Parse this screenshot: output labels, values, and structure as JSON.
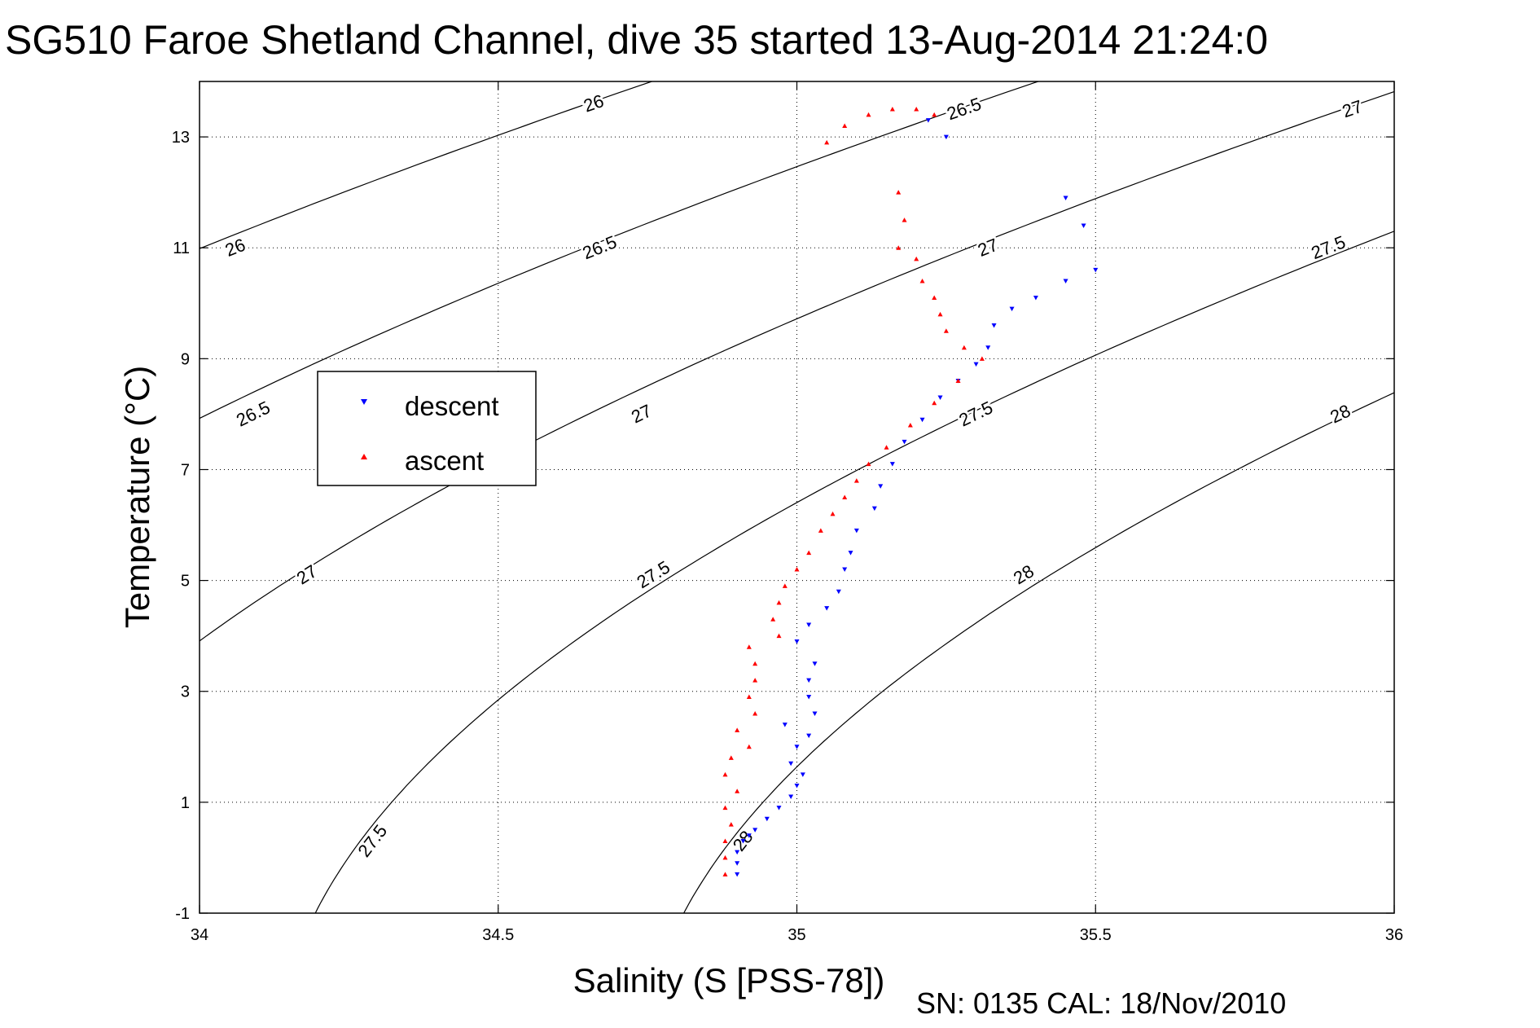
{
  "chart_data": {
    "type": "scatter",
    "title": "SG510 Faroe Shetland Channel, dive 35 started 13-Aug-2014 21:24:0",
    "xlabel": "Salinity (S [PSS-78])",
    "ylabel": "Temperature (°C)",
    "footer": "SN: 0135  CAL: 18/Nov/2010",
    "xlim": [
      34,
      36
    ],
    "ylim": [
      -1,
      14
    ],
    "xticks": [
      34,
      34.5,
      35,
      35.5,
      36
    ],
    "yticks": [
      -1,
      1,
      3,
      5,
      7,
      9,
      11,
      13
    ],
    "grid": true,
    "legend": {
      "position": "left-middle",
      "entries": [
        "descent",
        "ascent"
      ]
    },
    "colors": {
      "descent": "#0000ff",
      "ascent": "#ff0000",
      "contour": "#000000"
    },
    "series": [
      {
        "name": "descent",
        "marker": "triangle-down",
        "points": [
          [
            34.9,
            -0.3
          ],
          [
            34.9,
            -0.1
          ],
          [
            34.9,
            0.1
          ],
          [
            34.91,
            0.3
          ],
          [
            34.92,
            0.4
          ],
          [
            34.93,
            0.5
          ],
          [
            34.95,
            0.7
          ],
          [
            34.97,
            0.9
          ],
          [
            34.99,
            1.1
          ],
          [
            35.0,
            1.3
          ],
          [
            35.01,
            1.5
          ],
          [
            34.99,
            1.7
          ],
          [
            35.0,
            2.0
          ],
          [
            35.02,
            2.2
          ],
          [
            34.98,
            2.4
          ],
          [
            35.03,
            2.6
          ],
          [
            35.02,
            2.9
          ],
          [
            35.02,
            3.2
          ],
          [
            35.03,
            3.5
          ],
          [
            35.0,
            3.9
          ],
          [
            35.02,
            4.2
          ],
          [
            35.05,
            4.5
          ],
          [
            35.07,
            4.8
          ],
          [
            35.08,
            5.2
          ],
          [
            35.09,
            5.5
          ],
          [
            35.1,
            5.9
          ],
          [
            35.13,
            6.3
          ],
          [
            35.14,
            6.7
          ],
          [
            35.16,
            7.1
          ],
          [
            35.18,
            7.5
          ],
          [
            35.21,
            7.9
          ],
          [
            35.24,
            8.3
          ],
          [
            35.27,
            8.6
          ],
          [
            35.3,
            8.9
          ],
          [
            35.32,
            9.2
          ],
          [
            35.33,
            9.6
          ],
          [
            35.36,
            9.9
          ],
          [
            35.4,
            10.1
          ],
          [
            35.45,
            10.4
          ],
          [
            35.5,
            10.6
          ],
          [
            35.48,
            11.4
          ],
          [
            35.45,
            11.9
          ],
          [
            35.22,
            13.3
          ],
          [
            35.25,
            13.0
          ]
        ]
      },
      {
        "name": "ascent",
        "marker": "triangle-up",
        "points": [
          [
            34.88,
            -0.3
          ],
          [
            34.88,
            0.0
          ],
          [
            34.88,
            0.3
          ],
          [
            34.89,
            0.6
          ],
          [
            34.88,
            0.9
          ],
          [
            34.9,
            1.2
          ],
          [
            34.88,
            1.5
          ],
          [
            34.89,
            1.8
          ],
          [
            34.92,
            2.0
          ],
          [
            34.9,
            2.3
          ],
          [
            34.93,
            2.6
          ],
          [
            34.92,
            2.9
          ],
          [
            34.93,
            3.2
          ],
          [
            34.93,
            3.5
          ],
          [
            34.92,
            3.8
          ],
          [
            34.97,
            4.0
          ],
          [
            34.96,
            4.3
          ],
          [
            34.97,
            4.6
          ],
          [
            34.98,
            4.9
          ],
          [
            35.0,
            5.2
          ],
          [
            35.02,
            5.5
          ],
          [
            35.04,
            5.9
          ],
          [
            35.06,
            6.2
          ],
          [
            35.08,
            6.5
          ],
          [
            35.1,
            6.8
          ],
          [
            35.12,
            7.1
          ],
          [
            35.15,
            7.4
          ],
          [
            35.19,
            7.8
          ],
          [
            35.23,
            8.2
          ],
          [
            35.27,
            8.6
          ],
          [
            35.31,
            9.0
          ],
          [
            35.28,
            9.2
          ],
          [
            35.25,
            9.5
          ],
          [
            35.24,
            9.8
          ],
          [
            35.23,
            10.1
          ],
          [
            35.21,
            10.4
          ],
          [
            35.2,
            10.8
          ],
          [
            35.17,
            11.0
          ],
          [
            35.18,
            11.5
          ],
          [
            35.17,
            12.0
          ],
          [
            35.05,
            12.9
          ],
          [
            35.08,
            13.2
          ],
          [
            35.12,
            13.4
          ],
          [
            35.16,
            13.5
          ],
          [
            35.2,
            13.5
          ],
          [
            35.23,
            13.4
          ]
        ]
      }
    ],
    "contours": {
      "levels": [
        26,
        26.5,
        27,
        27.5,
        28
      ],
      "labels": [
        {
          "level": "26",
          "s": 34.66,
          "t": 13.6
        },
        {
          "level": "26.5",
          "s": 35.28,
          "t": 13.5
        },
        {
          "level": "27",
          "s": 35.93,
          "t": 13.5
        },
        {
          "level": "26",
          "s": 34.06,
          "t": 11.0
        },
        {
          "level": "26.5",
          "s": 34.67,
          "t": 11.0
        },
        {
          "level": "27",
          "s": 35.32,
          "t": 11.0
        },
        {
          "level": "27.5",
          "s": 35.89,
          "t": 11.0
        },
        {
          "level": "26.5",
          "s": 34.09,
          "t": 8.0
        },
        {
          "level": "27",
          "s": 34.74,
          "t": 8.0
        },
        {
          "level": "27.5",
          "s": 35.3,
          "t": 8.0
        },
        {
          "level": "28",
          "s": 35.91,
          "t": 8.0
        },
        {
          "level": "27",
          "s": 34.18,
          "t": 5.1
        },
        {
          "level": "27.5",
          "s": 34.76,
          "t": 5.1
        },
        {
          "level": "28",
          "s": 35.38,
          "t": 5.1
        },
        {
          "level": "27.5",
          "s": 34.29,
          "t": 0.3
        },
        {
          "level": "28",
          "s": 34.91,
          "t": 0.3
        }
      ]
    }
  }
}
